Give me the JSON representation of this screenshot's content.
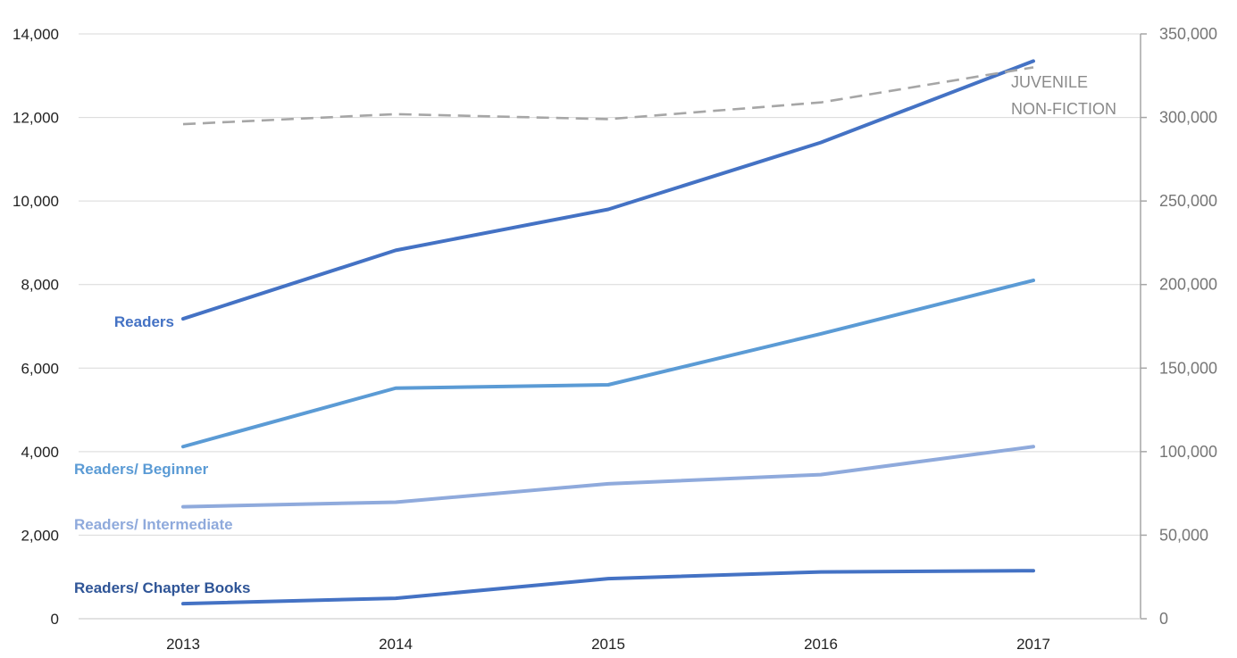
{
  "chart_data": {
    "type": "line",
    "title": "",
    "xlabel": "",
    "ylabel": "",
    "categories": [
      "2013",
      "2014",
      "2015",
      "2016",
      "2017"
    ],
    "ylim": [
      0,
      14000
    ],
    "yticks": [
      "0",
      "2,000",
      "4,000",
      "6,000",
      "8,000",
      "10,000",
      "12,000",
      "14,000"
    ],
    "y2lim": [
      0,
      350000
    ],
    "y2ticks": [
      "0",
      "50,000",
      "100,000",
      "150,000",
      "200,000",
      "250,000",
      "300,000",
      "350,000"
    ],
    "grid": true,
    "series": [
      {
        "name": "Readers",
        "axis": "left",
        "color": "#4472c4",
        "style": "solid",
        "values": [
          7180,
          8820,
          9800,
          11400,
          13350
        ]
      },
      {
        "name": "Readers/ Beginner",
        "axis": "left",
        "color": "#5b9bd5",
        "style": "solid",
        "values": [
          4120,
          5520,
          5600,
          6820,
          8100
        ]
      },
      {
        "name": "Readers/ Intermediate",
        "axis": "left",
        "color": "#8faadc",
        "style": "solid",
        "values": [
          2680,
          2790,
          3230,
          3450,
          4120
        ]
      },
      {
        "name": "Readers/ Chapter Books",
        "axis": "left",
        "color": "#4472c4",
        "style": "solid",
        "values": [
          360,
          490,
          960,
          1120,
          1150
        ]
      },
      {
        "name": "JUVENILE NON-FICTION",
        "axis": "right",
        "color": "#a6a6a6",
        "style": "dashed",
        "values": [
          296000,
          302000,
          299000,
          309000,
          330000
        ]
      }
    ],
    "annotations": {
      "readers": "Readers",
      "beginner": "Readers/ Beginner",
      "intermediate": "Readers/ Intermediate",
      "chapter_books": "Readers/ Chapter Books",
      "juvenile_line1": "JUVENILE",
      "juvenile_line2": "NON-FICTION"
    }
  }
}
